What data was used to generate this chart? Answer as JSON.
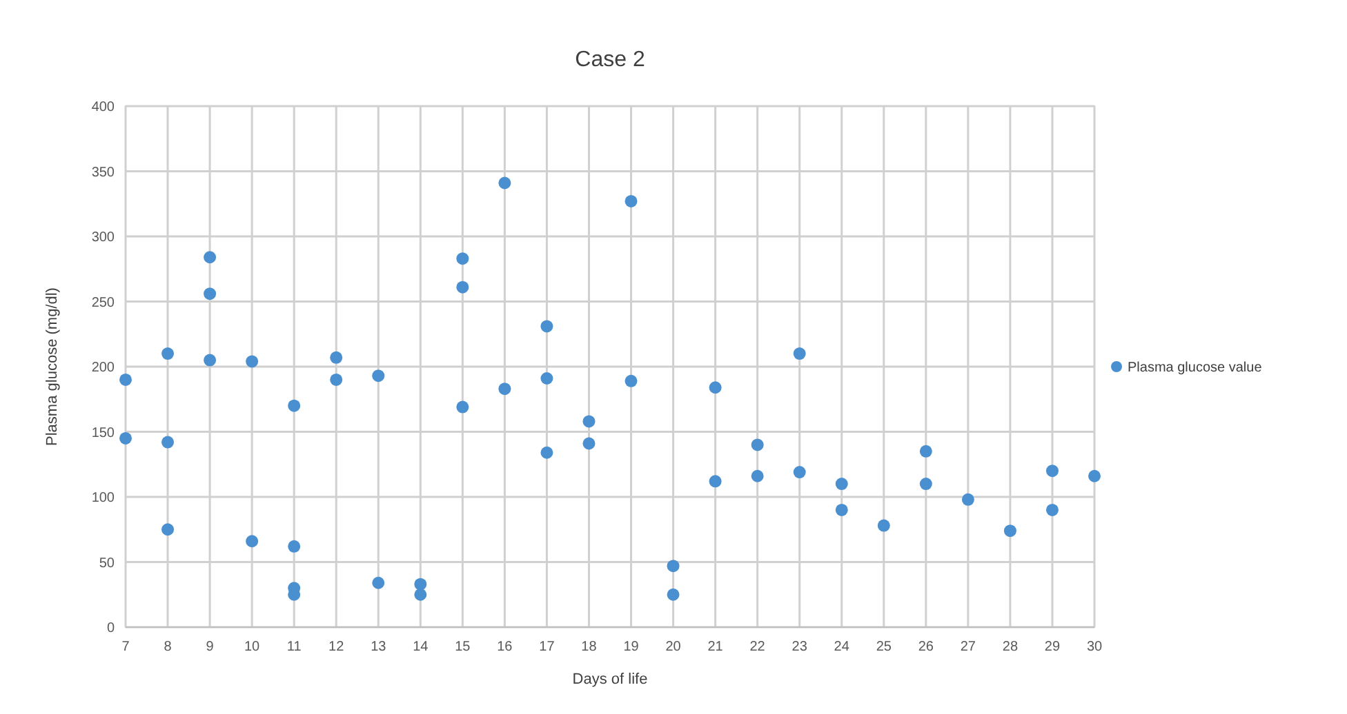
{
  "chart_data": {
    "type": "scatter",
    "title": "Case 2",
    "xlabel": "Days of life",
    "ylabel": "Plasma glucose (mg/dl)",
    "x": [
      7,
      7,
      8,
      8,
      8,
      9,
      9,
      9,
      10,
      10,
      11,
      11,
      11,
      11,
      12,
      12,
      13,
      13,
      14,
      14,
      15,
      15,
      15,
      16,
      16,
      17,
      17,
      17,
      18,
      18,
      19,
      19,
      20,
      20,
      21,
      21,
      22,
      22,
      23,
      23,
      24,
      24,
      25,
      26,
      26,
      27,
      28,
      29,
      29,
      30
    ],
    "series": [
      {
        "name": "Plasma glucose value",
        "color": "#4a8fcf",
        "values": [
          190,
          145,
          210,
          142,
          75,
          284,
          256,
          205,
          204,
          66,
          170,
          62,
          30,
          25,
          207,
          190,
          193,
          34,
          33,
          25,
          283,
          261,
          169,
          341,
          183,
          231,
          191,
          134,
          158,
          141,
          327,
          189,
          47,
          25,
          184,
          112,
          140,
          116,
          210,
          119,
          110,
          90,
          78,
          135,
          110,
          98,
          74,
          120,
          90,
          116
        ]
      }
    ],
    "xlim": [
      7,
      30
    ],
    "xticks": [
      7,
      8,
      9,
      10,
      11,
      12,
      13,
      14,
      15,
      16,
      17,
      18,
      19,
      20,
      21,
      22,
      23,
      24,
      25,
      26,
      27,
      28,
      29,
      30
    ],
    "ylim": [
      0,
      400
    ],
    "yticks": [
      0,
      50,
      100,
      150,
      200,
      250,
      300,
      350,
      400
    ],
    "grid": true,
    "legend": "right",
    "marker": "circle"
  }
}
